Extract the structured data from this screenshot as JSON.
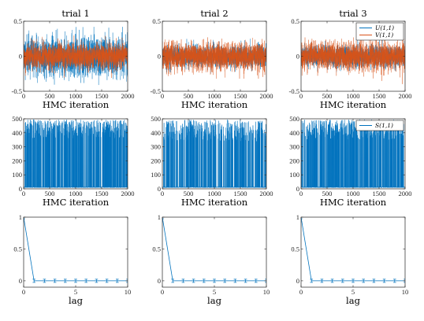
{
  "colors": {
    "blue": "#0072BD",
    "orange": "#D95319",
    "axis": "#262626"
  },
  "chart_data": [
    {
      "id": "trace-u-v-trial-1",
      "type": "line",
      "row": 0,
      "col": 0,
      "title": "trial 1",
      "xlabel": "HMC iteration",
      "ylabel": "",
      "xlim": [
        0,
        2000
      ],
      "ylim": [
        -0.5,
        0.5
      ],
      "xticks": [
        0,
        500,
        1000,
        1500,
        2000
      ],
      "yticks": [
        -0.5,
        0,
        0.5
      ],
      "xtick_labels": [
        "0",
        "500",
        "1000",
        "1500",
        "2000"
      ],
      "ytick_labels": [
        "-0.5",
        "0",
        "0.5"
      ],
      "legend": null,
      "series": [
        {
          "label": "U(1,1)",
          "color": "#0072BD",
          "kind": "noise",
          "n": 2000,
          "seed": 11,
          "center": 0,
          "sd": 0.135,
          "clip": [
            -0.45,
            0.42
          ]
        },
        {
          "label": "V(1,1)",
          "color": "#D95319",
          "kind": "noise",
          "n": 2000,
          "seed": 12,
          "center": 0,
          "sd": 0.09,
          "clip": [
            -0.33,
            0.3
          ]
        }
      ]
    },
    {
      "id": "trace-u-v-trial-2",
      "type": "line",
      "row": 0,
      "col": 1,
      "title": "trial 2",
      "xlabel": "HMC iteration",
      "ylabel": "",
      "xlim": [
        0,
        2000
      ],
      "ylim": [
        -0.5,
        0.5
      ],
      "xticks": [
        0,
        500,
        1000,
        1500,
        2000
      ],
      "yticks": [
        -0.5,
        0,
        0.5
      ],
      "xtick_labels": [
        "0",
        "500",
        "1000",
        "1500",
        "2000"
      ],
      "ytick_labels": [
        "-0.5",
        "0",
        "0.5"
      ],
      "legend": null,
      "series": [
        {
          "label": "U(1,1)",
          "color": "#0072BD",
          "kind": "noise",
          "n": 2000,
          "seed": 21,
          "center": 0,
          "sd": 0.075,
          "clip": [
            -0.25,
            0.25
          ]
        },
        {
          "label": "V(1,1)",
          "color": "#D95319",
          "kind": "noise",
          "n": 2000,
          "seed": 22,
          "center": 0,
          "sd": 0.095,
          "clip": [
            -0.32,
            0.32
          ]
        }
      ]
    },
    {
      "id": "trace-u-v-trial-3",
      "type": "line",
      "row": 0,
      "col": 2,
      "title": "trial 3",
      "xlabel": "HMC iteration",
      "ylabel": "",
      "xlim": [
        0,
        2000
      ],
      "ylim": [
        -0.5,
        0.5
      ],
      "xticks": [
        0,
        500,
        1000,
        1500,
        2000
      ],
      "yticks": [
        -0.5,
        0,
        0.5
      ],
      "xtick_labels": [
        "0",
        "500",
        "1000",
        "1500",
        "2000"
      ],
      "ytick_labels": [
        "-0.5",
        "0",
        "0.5"
      ],
      "legend": {
        "location": "top-right",
        "entries": [
          "U(1,1)",
          "V(1,1)"
        ]
      },
      "series": [
        {
          "label": "U(1,1)",
          "color": "#0072BD",
          "kind": "noise",
          "n": 2000,
          "seed": 31,
          "center": 0,
          "sd": 0.075,
          "clip": [
            -0.25,
            0.25
          ]
        },
        {
          "label": "V(1,1)",
          "color": "#D95319",
          "kind": "noise",
          "n": 2000,
          "seed": 32,
          "center": 0,
          "sd": 0.1,
          "clip": [
            -0.4,
            0.4
          ]
        }
      ]
    },
    {
      "id": "trace-s-trial-1",
      "type": "line",
      "row": 1,
      "col": 0,
      "title": "",
      "xlabel": "HMC iteration",
      "ylabel": "",
      "xlim": [
        0,
        2000
      ],
      "ylim": [
        0,
        500
      ],
      "xticks": [
        0,
        500,
        1000,
        1500,
        2000
      ],
      "yticks": [
        0,
        100,
        200,
        300,
        400,
        500
      ],
      "xtick_labels": [
        "0",
        "500",
        "1000",
        "1500",
        "2000"
      ],
      "ytick_labels": [
        "0",
        "100",
        "200",
        "300",
        "400",
        "500"
      ],
      "legend": null,
      "series": [
        {
          "label": "S(1,1)",
          "color": "#0072BD",
          "kind": "spikes",
          "n": 2000,
          "seed": 41,
          "base": 8,
          "high_min": 360,
          "high_max": 495,
          "density": 0.24
        }
      ]
    },
    {
      "id": "trace-s-trial-2",
      "type": "line",
      "row": 1,
      "col": 1,
      "title": "",
      "xlabel": "HMC iteration",
      "ylabel": "",
      "xlim": [
        0,
        2000
      ],
      "ylim": [
        0,
        500
      ],
      "xticks": [
        0,
        500,
        1000,
        1500,
        2000
      ],
      "yticks": [
        0,
        100,
        200,
        300,
        400,
        500
      ],
      "xtick_labels": [
        "0",
        "500",
        "1000",
        "1500",
        "2000"
      ],
      "ytick_labels": [
        "0",
        "100",
        "200",
        "300",
        "400",
        "500"
      ],
      "legend": null,
      "series": [
        {
          "label": "S(1,1)",
          "color": "#0072BD",
          "kind": "spikes",
          "n": 2000,
          "seed": 51,
          "base": 8,
          "high_min": 340,
          "high_max": 495,
          "density": 0.2
        }
      ]
    },
    {
      "id": "trace-s-trial-3",
      "type": "line",
      "row": 1,
      "col": 2,
      "title": "",
      "xlabel": "HMC iteration",
      "ylabel": "",
      "xlim": [
        0,
        2000
      ],
      "ylim": [
        0,
        500
      ],
      "xticks": [
        0,
        500,
        1000,
        1500,
        2000
      ],
      "yticks": [
        0,
        100,
        200,
        300,
        400,
        500
      ],
      "xtick_labels": [
        "0",
        "500",
        "1000",
        "1500",
        "2000"
      ],
      "ytick_labels": [
        "0",
        "100",
        "200",
        "300",
        "400",
        "500"
      ],
      "legend": {
        "location": "top-right",
        "entries": [
          "S(1,1)"
        ]
      },
      "series": [
        {
          "label": "S(1,1)",
          "color": "#0072BD",
          "kind": "spikes",
          "n": 2000,
          "seed": 61,
          "base": 8,
          "high_min": 350,
          "high_max": 495,
          "density": 0.22
        }
      ]
    },
    {
      "id": "acf-trial-1",
      "type": "line",
      "row": 2,
      "col": 0,
      "title": "",
      "xlabel": "lag",
      "ylabel": "",
      "xlim": [
        0,
        10
      ],
      "ylim": [
        -0.1,
        1
      ],
      "xticks": [
        0,
        5,
        10
      ],
      "yticks": [
        0,
        0.5,
        1
      ],
      "xtick_labels": [
        "0",
        "5",
        "10"
      ],
      "ytick_labels": [
        "0",
        "0.5",
        "1"
      ],
      "legend": null,
      "series": [
        {
          "label": "",
          "color": "#0072BD",
          "kind": "points",
          "x": [
            0,
            1,
            2,
            3,
            4,
            5,
            6,
            7,
            8,
            9,
            10
          ],
          "y": [
            1,
            0,
            0,
            0,
            0,
            0,
            0,
            0,
            0,
            0,
            0
          ],
          "err": 0.025
        }
      ]
    },
    {
      "id": "acf-trial-2",
      "type": "line",
      "row": 2,
      "col": 1,
      "title": "",
      "xlabel": "lag",
      "ylabel": "",
      "xlim": [
        0,
        10
      ],
      "ylim": [
        -0.1,
        1
      ],
      "xticks": [
        0,
        5,
        10
      ],
      "yticks": [
        0,
        0.5,
        1
      ],
      "xtick_labels": [
        "0",
        "5",
        "10"
      ],
      "ytick_labels": [
        "0",
        "0.5",
        "1"
      ],
      "legend": null,
      "series": [
        {
          "label": "",
          "color": "#0072BD",
          "kind": "points",
          "x": [
            0,
            1,
            2,
            3,
            4,
            5,
            6,
            7,
            8,
            9,
            10
          ],
          "y": [
            1,
            0,
            0,
            0,
            0,
            0,
            0,
            0,
            0,
            0,
            0
          ],
          "err": 0.025
        }
      ]
    },
    {
      "id": "acf-trial-3",
      "type": "line",
      "row": 2,
      "col": 2,
      "title": "",
      "xlabel": "lag",
      "ylabel": "",
      "xlim": [
        0,
        10
      ],
      "ylim": [
        -0.1,
        1
      ],
      "xticks": [
        0,
        5,
        10
      ],
      "yticks": [
        0,
        0.5,
        1
      ],
      "xtick_labels": [
        "0",
        "5",
        "10"
      ],
      "ytick_labels": [
        "0",
        "0.5",
        "1"
      ],
      "legend": null,
      "series": [
        {
          "label": "",
          "color": "#0072BD",
          "kind": "points",
          "x": [
            0,
            1,
            2,
            3,
            4,
            5,
            6,
            7,
            8,
            9,
            10
          ],
          "y": [
            1,
            0,
            0,
            0,
            0,
            0,
            0,
            0,
            0,
            0,
            0
          ],
          "err": 0.025
        }
      ]
    }
  ]
}
